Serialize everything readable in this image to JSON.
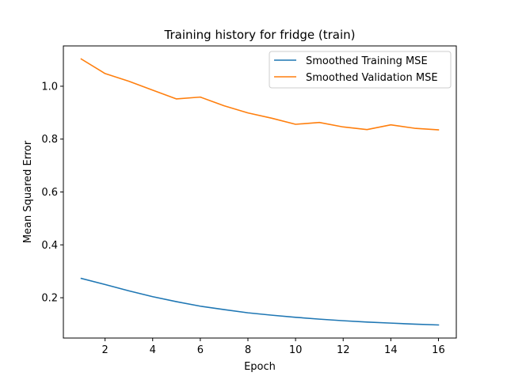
{
  "chart_data": {
    "type": "line",
    "title": "Training history for fridge (train)",
    "xlabel": "Epoch",
    "ylabel": "Mean Squared Error",
    "xlim": [
      0.25,
      16.75
    ],
    "ylim": [
      0.0475,
      1.1525
    ],
    "xticks": [
      2,
      4,
      6,
      8,
      10,
      12,
      14,
      16
    ],
    "yticks": [
      0.2,
      0.4,
      0.6,
      0.8,
      1.0
    ],
    "ytick_labels": [
      "0.2",
      "0.4",
      "0.6",
      "0.8",
      "1.0"
    ],
    "grid": false,
    "legend_position": "upper right",
    "x": [
      1,
      2,
      3,
      4,
      5,
      6,
      7,
      8,
      9,
      10,
      11,
      12,
      13,
      14,
      15,
      16
    ],
    "series": [
      {
        "name": "Smoothed Training MSE",
        "color": "#1f77b4",
        "values": [
          0.273,
          0.25,
          0.226,
          0.204,
          0.185,
          0.168,
          0.155,
          0.143,
          0.134,
          0.126,
          0.119,
          0.113,
          0.108,
          0.104,
          0.1,
          0.097
        ]
      },
      {
        "name": "Smoothed Validation MSE",
        "color": "#ff7f0e",
        "values": [
          1.103,
          1.048,
          1.019,
          0.985,
          0.952,
          0.959,
          0.926,
          0.899,
          0.879,
          0.856,
          0.863,
          0.846,
          0.836,
          0.854,
          0.841,
          0.835
        ]
      }
    ]
  }
}
